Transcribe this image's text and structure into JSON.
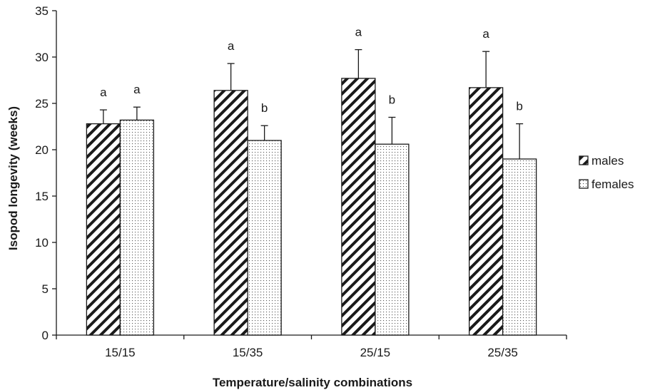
{
  "chart_data": {
    "type": "bar",
    "categories": [
      "15/15",
      "15/35",
      "25/15",
      "25/35"
    ],
    "series": [
      {
        "name": "males",
        "values": [
          22.8,
          26.4,
          27.7,
          26.7
        ],
        "errors": [
          1.5,
          2.9,
          3.1,
          3.9
        ],
        "letters": [
          "a",
          "a",
          "a",
          "a"
        ],
        "pattern": "diagonal-hatch"
      },
      {
        "name": "females",
        "values": [
          23.2,
          21.0,
          20.6,
          19.0
        ],
        "errors": [
          1.4,
          1.6,
          2.9,
          3.8
        ],
        "letters": [
          "a",
          "b",
          "b",
          "b"
        ],
        "pattern": "dots"
      }
    ],
    "xlabel": "Temperature/salinity combinations",
    "ylabel": "Isopod longevity (weeks)",
    "ylim": [
      0,
      35
    ],
    "yticks": [
      0,
      5,
      10,
      15,
      20,
      25,
      30,
      35
    ],
    "grid": false,
    "legend_position": "right",
    "colors": {
      "bar_fill": "#ffffff",
      "stroke": "#1a1a1a",
      "text": "#1a1a1a"
    }
  }
}
